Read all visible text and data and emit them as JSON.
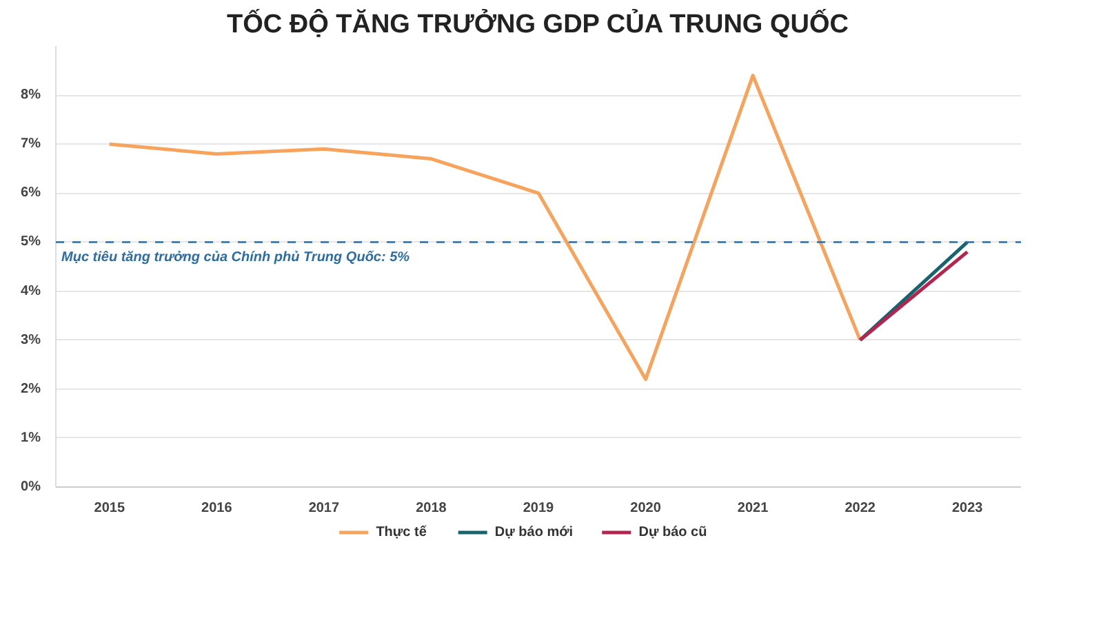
{
  "chart_data": {
    "type": "line",
    "title": "TỐC ĐỘ TĂNG TRƯỞNG GDP CỦA TRUNG QUỐC",
    "categories": [
      "2015",
      "2016",
      "2017",
      "2018",
      "2019",
      "2020",
      "2021",
      "2022",
      "2023"
    ],
    "series": [
      {
        "name": "Thực tế",
        "color": "#f7a35c",
        "values": [
          7.0,
          6.8,
          6.9,
          6.7,
          6.0,
          2.2,
          8.4,
          3.0,
          null
        ]
      },
      {
        "name": "Dự báo mới",
        "color": "#17646e",
        "values": [
          null,
          null,
          null,
          null,
          null,
          null,
          null,
          3.0,
          5.0
        ]
      },
      {
        "name": "Dự báo cũ",
        "color": "#b5234f",
        "values": [
          null,
          null,
          null,
          null,
          null,
          null,
          null,
          3.0,
          4.8
        ]
      }
    ],
    "ylim": [
      0,
      9
    ],
    "yticks": [
      {
        "value": 0,
        "label": "0%"
      },
      {
        "value": 1,
        "label": "1%"
      },
      {
        "value": 2,
        "label": "2%"
      },
      {
        "value": 3,
        "label": "3%"
      },
      {
        "value": 4,
        "label": "4%"
      },
      {
        "value": 5,
        "label": "5%"
      },
      {
        "value": 6,
        "label": "6%"
      },
      {
        "value": 7,
        "label": "7%"
      },
      {
        "value": 8,
        "label": "8%"
      }
    ],
    "ref_lines": [
      {
        "axis": "y",
        "value": 5,
        "label": "Mục tiêu tăng trưởng của Chính phủ Trung Quốc: 5%",
        "color": "#2e6da4",
        "line_style": "dashed"
      }
    ],
    "grid": "y",
    "legend": "bottom",
    "marker": "none",
    "line_style": "solid"
  }
}
